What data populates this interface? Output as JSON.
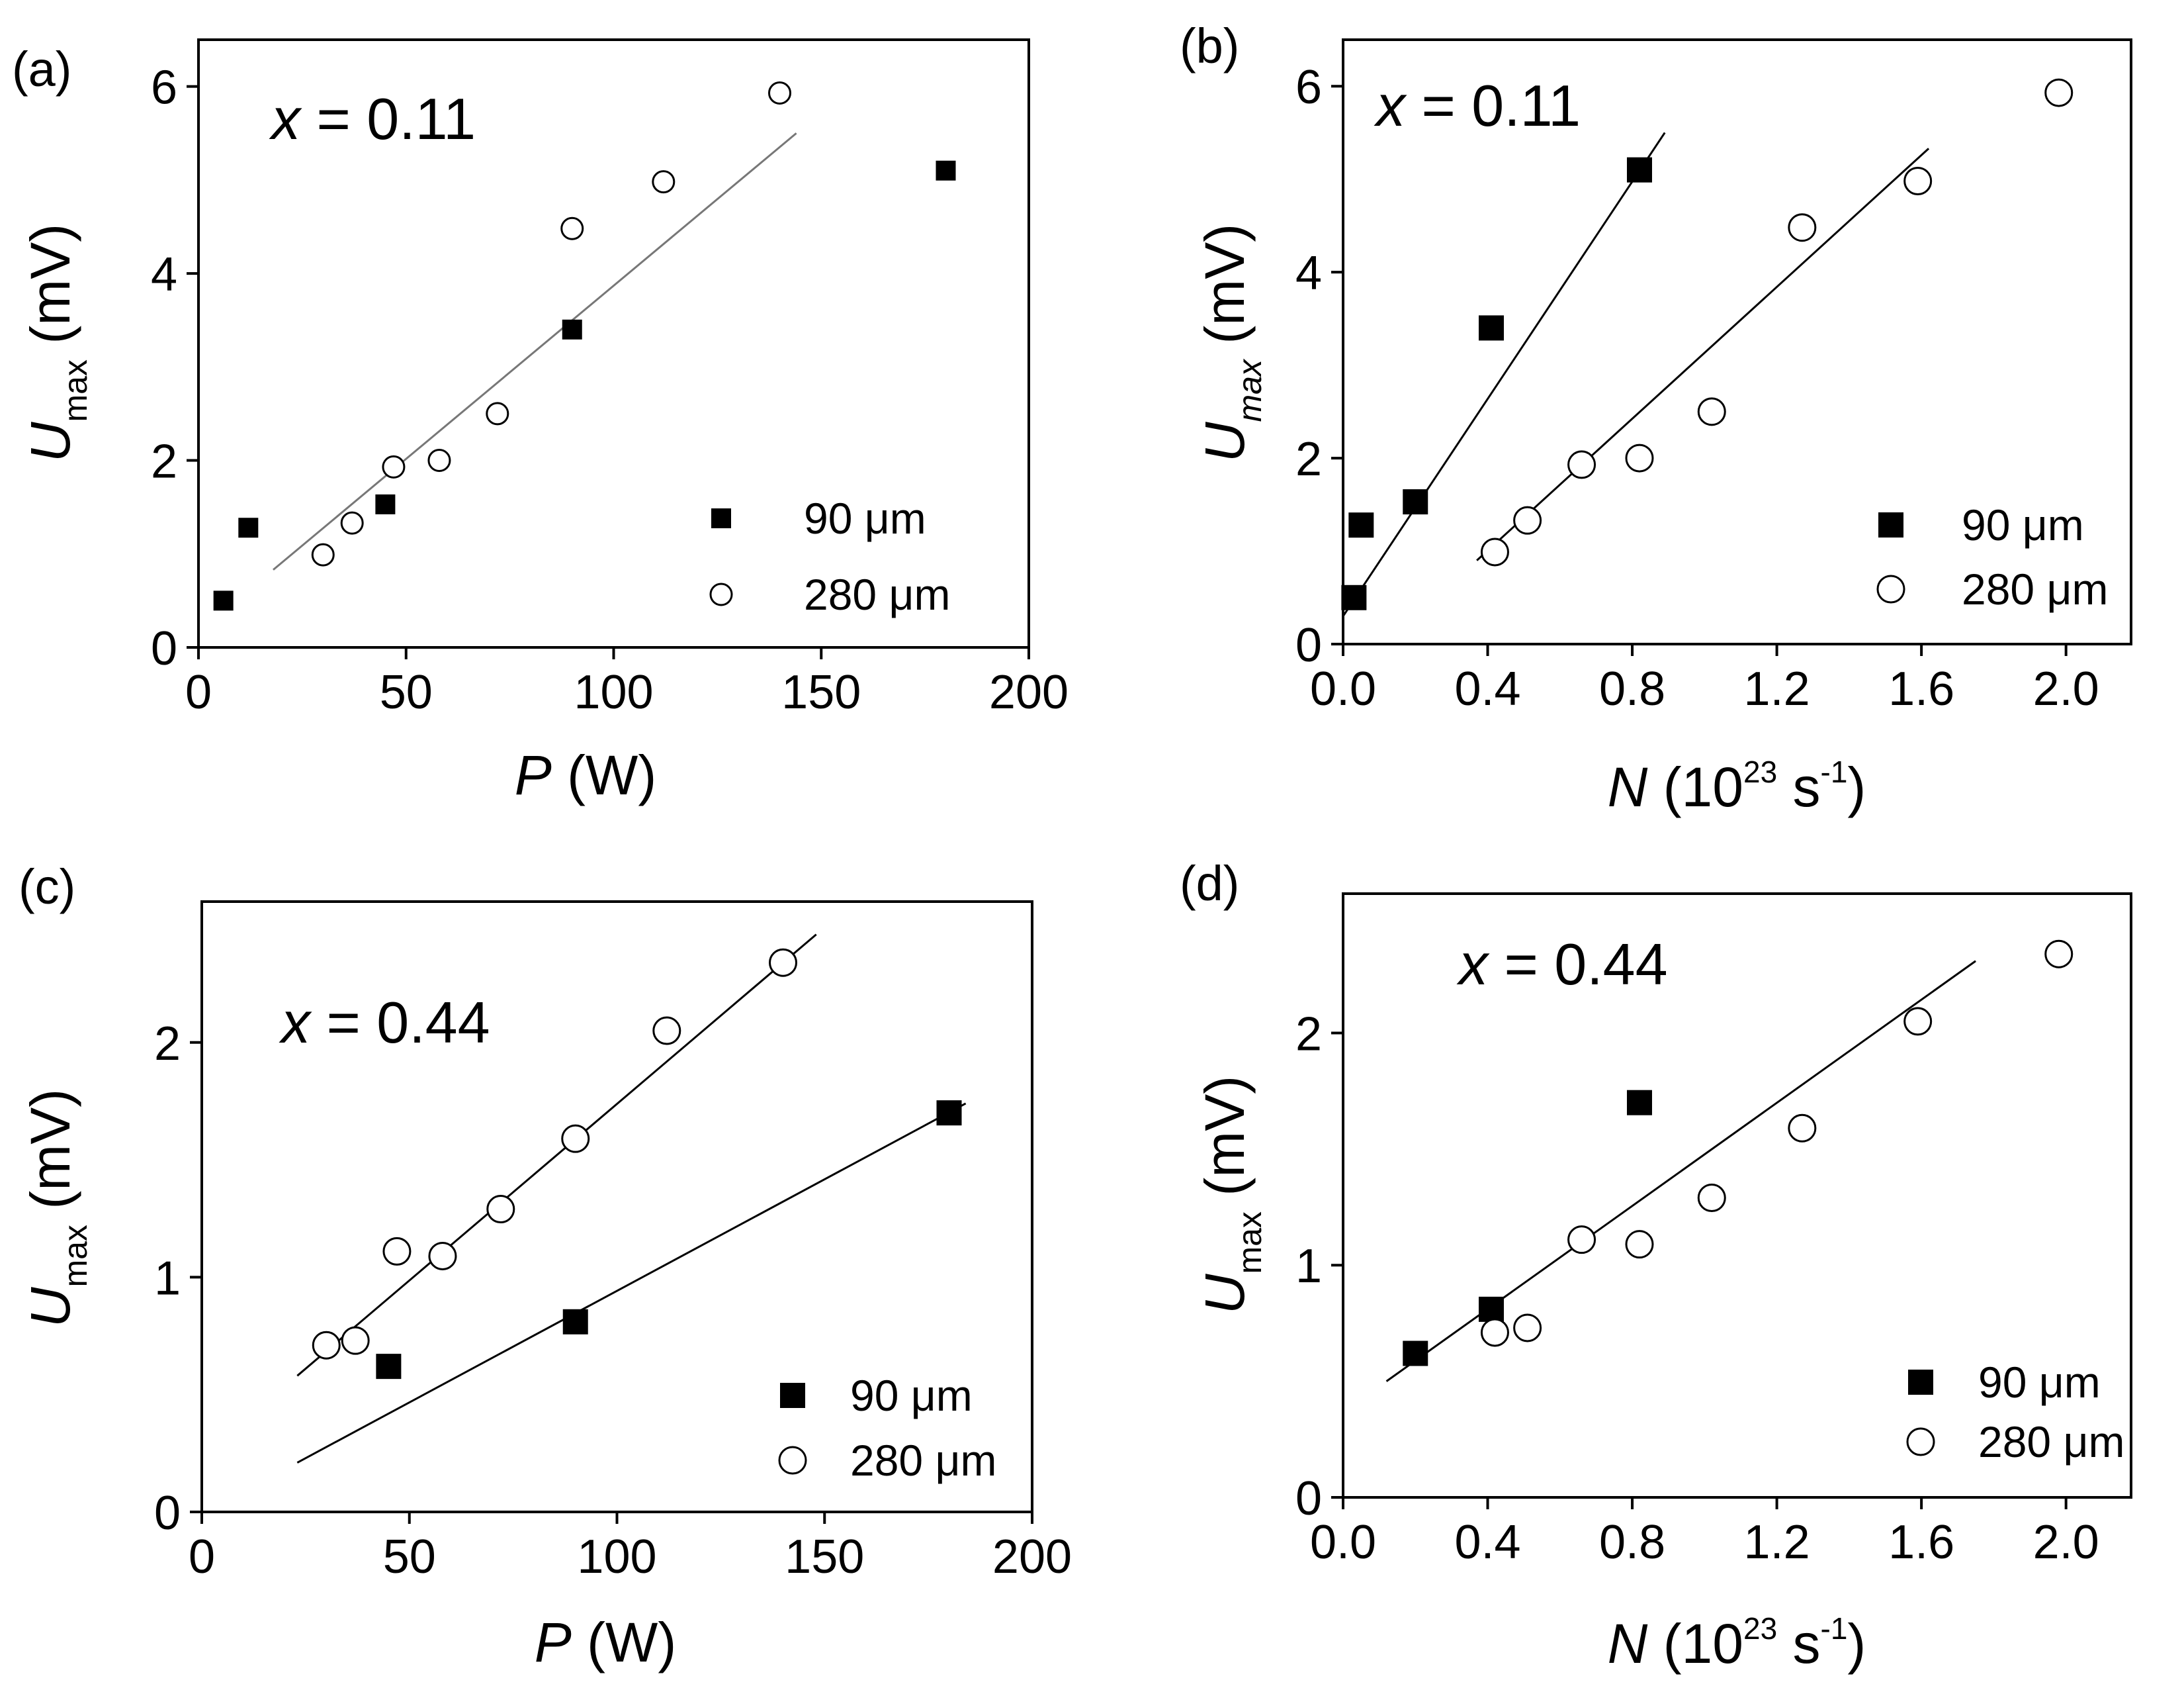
{
  "figure": {
    "panels": [
      {
        "label": "(a)",
        "annotation_var": "x",
        "annotation_value": " = 0.11",
        "xlabel_var": "P",
        "xlabel_unit": " (W)",
        "xlabel_exp": "",
        "xlabel_close": "",
        "ylabel_var": "U",
        "ylabel_sub": "max",
        "ylabel_unit": " (mV)",
        "legend": [
          "90 μm",
          "280 μm"
        ]
      },
      {
        "label": "(b)",
        "annotation_var": "x",
        "annotation_value": " = 0.11",
        "xlabel_var": "N",
        "xlabel_unit": " (10",
        "xlabel_exp": "23",
        "xlabel_close": " s",
        "xlabel_exp2": "-1",
        "xlabel_end": ")",
        "ylabel_var": "U",
        "ylabel_sub": "max",
        "ylabel_unit": " (mV)",
        "legend": [
          "90 μm",
          "280 μm"
        ]
      },
      {
        "label": "(c)",
        "annotation_var": "x",
        "annotation_value": " = 0.44",
        "xlabel_var": "P",
        "xlabel_unit": " (W)",
        "xlabel_exp": "",
        "xlabel_close": "",
        "ylabel_var": "U",
        "ylabel_sub": "max",
        "ylabel_unit": " (mV)",
        "legend": [
          "90 μm",
          "280 μm"
        ]
      },
      {
        "label": "(d)",
        "annotation_var": "x",
        "annotation_value": " = 0.44",
        "xlabel_var": "N",
        "xlabel_unit": " (10",
        "xlabel_exp": "23",
        "xlabel_close": " s",
        "xlabel_exp2": "-1",
        "xlabel_end": ")",
        "ylabel_var": "U",
        "ylabel_sub": "max",
        "ylabel_unit": " (mV)",
        "legend": [
          "90 μm",
          "280 μm"
        ]
      }
    ]
  },
  "chart_data": [
    {
      "type": "scatter",
      "title": "(a) x = 0.11",
      "xlabel": "P (W)",
      "ylabel": "U_max (mV)",
      "xlim": [
        0,
        200
      ],
      "ylim": [
        0,
        6.5
      ],
      "xticks": [
        "0",
        "50",
        "100",
        "150",
        "200"
      ],
      "xtick_values": [
        0,
        50,
        100,
        150,
        200
      ],
      "yticks": [
        "0",
        "2",
        "4",
        "6"
      ],
      "ytick_values": [
        0,
        2,
        4,
        6
      ],
      "series": [
        {
          "name": "90 μm",
          "marker": "filled-square",
          "x": [
            6,
            12,
            45,
            90,
            180
          ],
          "y": [
            0.5,
            1.28,
            1.53,
            3.4,
            5.1
          ]
        },
        {
          "name": "280 μm",
          "marker": "open-circle",
          "x": [
            30,
            37,
            47,
            58,
            72,
            90,
            112,
            140
          ],
          "y": [
            0.99,
            1.33,
            1.93,
            2.0,
            2.5,
            4.48,
            4.98,
            5.93
          ]
        }
      ],
      "fit_lines": [
        {
          "color": "#777777",
          "from": [
            18,
            0.83
          ],
          "to": [
            144,
            5.5
          ]
        }
      ]
    },
    {
      "type": "scatter",
      "title": "(b) x = 0.11",
      "xlabel": "N (10^23 s^-1)",
      "ylabel": "U_max (mV)",
      "xlim": [
        0,
        2.18
      ],
      "ylim": [
        0,
        6.5
      ],
      "xticks": [
        "0.0",
        "0.4",
        "0.8",
        "1.2",
        "1.6",
        "2.0"
      ],
      "xtick_values": [
        0,
        0.4,
        0.8,
        1.2,
        1.6,
        2.0
      ],
      "yticks": [
        "0",
        "2",
        "4",
        "6"
      ],
      "ytick_values": [
        0,
        2,
        4,
        6
      ],
      "series": [
        {
          "name": "90 μm",
          "marker": "filled-square",
          "x": [
            0.03,
            0.05,
            0.2,
            0.41,
            0.82
          ],
          "y": [
            0.5,
            1.28,
            1.53,
            3.4,
            5.1
          ]
        },
        {
          "name": "280 μm",
          "marker": "open-circle",
          "x": [
            0.42,
            0.51,
            0.66,
            0.82,
            1.02,
            1.27,
            1.59,
            1.98
          ],
          "y": [
            0.99,
            1.33,
            1.93,
            2.0,
            2.5,
            4.48,
            4.98,
            5.93
          ]
        }
      ],
      "fit_lines": [
        {
          "color": "#000000",
          "from": [
            0.0,
            0.3
          ],
          "to": [
            0.89,
            5.5
          ]
        },
        {
          "color": "#000000",
          "from": [
            0.37,
            0.9
          ],
          "to": [
            1.62,
            5.33
          ]
        }
      ]
    },
    {
      "type": "scatter",
      "title": "(c) x = 0.44",
      "xlabel": "P (W)",
      "ylabel": "U_max (mV)",
      "xlim": [
        0,
        200
      ],
      "ylim": [
        0,
        2.6
      ],
      "xticks": [
        "0",
        "50",
        "100",
        "150",
        "200"
      ],
      "xtick_values": [
        0,
        50,
        100,
        150,
        200
      ],
      "yticks": [
        "0",
        "1",
        "2"
      ],
      "ytick_values": [
        0,
        1,
        2
      ],
      "series": [
        {
          "name": "90 μm",
          "marker": "filled-square",
          "x": [
            45,
            90,
            180
          ],
          "y": [
            0.62,
            0.81,
            1.7
          ]
        },
        {
          "name": "280 μm",
          "marker": "open-circle",
          "x": [
            30,
            37,
            47,
            58,
            72,
            90,
            112,
            140
          ],
          "y": [
            0.71,
            0.73,
            1.11,
            1.09,
            1.29,
            1.59,
            2.05,
            2.34
          ]
        }
      ],
      "fit_lines": [
        {
          "color": "#000000",
          "from": [
            23,
            0.58
          ],
          "to": [
            148,
            2.46
          ]
        },
        {
          "color": "#000000",
          "from": [
            23,
            0.21
          ],
          "to": [
            184,
            1.74
          ]
        }
      ]
    },
    {
      "type": "scatter",
      "title": "(d) x = 0.44",
      "xlabel": "N (10^23 s^-1)",
      "ylabel": "U_max (mV)",
      "xlim": [
        0,
        2.18
      ],
      "ylim": [
        0,
        2.6
      ],
      "xticks": [
        "0.0",
        "0.4",
        "0.8",
        "1.2",
        "1.6",
        "2.0"
      ],
      "xtick_values": [
        0,
        0.4,
        0.8,
        1.2,
        1.6,
        2.0
      ],
      "yticks": [
        "0",
        "1",
        "2"
      ],
      "ytick_values": [
        0,
        1,
        2
      ],
      "series": [
        {
          "name": "90 μm",
          "marker": "filled-square",
          "x": [
            0.2,
            0.41,
            0.82
          ],
          "y": [
            0.62,
            0.81,
            1.7
          ]
        },
        {
          "name": "280 μm",
          "marker": "open-circle",
          "x": [
            0.42,
            0.51,
            0.66,
            0.82,
            1.02,
            1.27,
            1.59,
            1.98
          ],
          "y": [
            0.71,
            0.73,
            1.11,
            1.09,
            1.29,
            1.59,
            2.05,
            2.34
          ]
        }
      ],
      "fit_lines": [
        {
          "color": "#000000",
          "from": [
            0.12,
            0.5
          ],
          "to": [
            1.75,
            2.31
          ]
        }
      ]
    }
  ]
}
